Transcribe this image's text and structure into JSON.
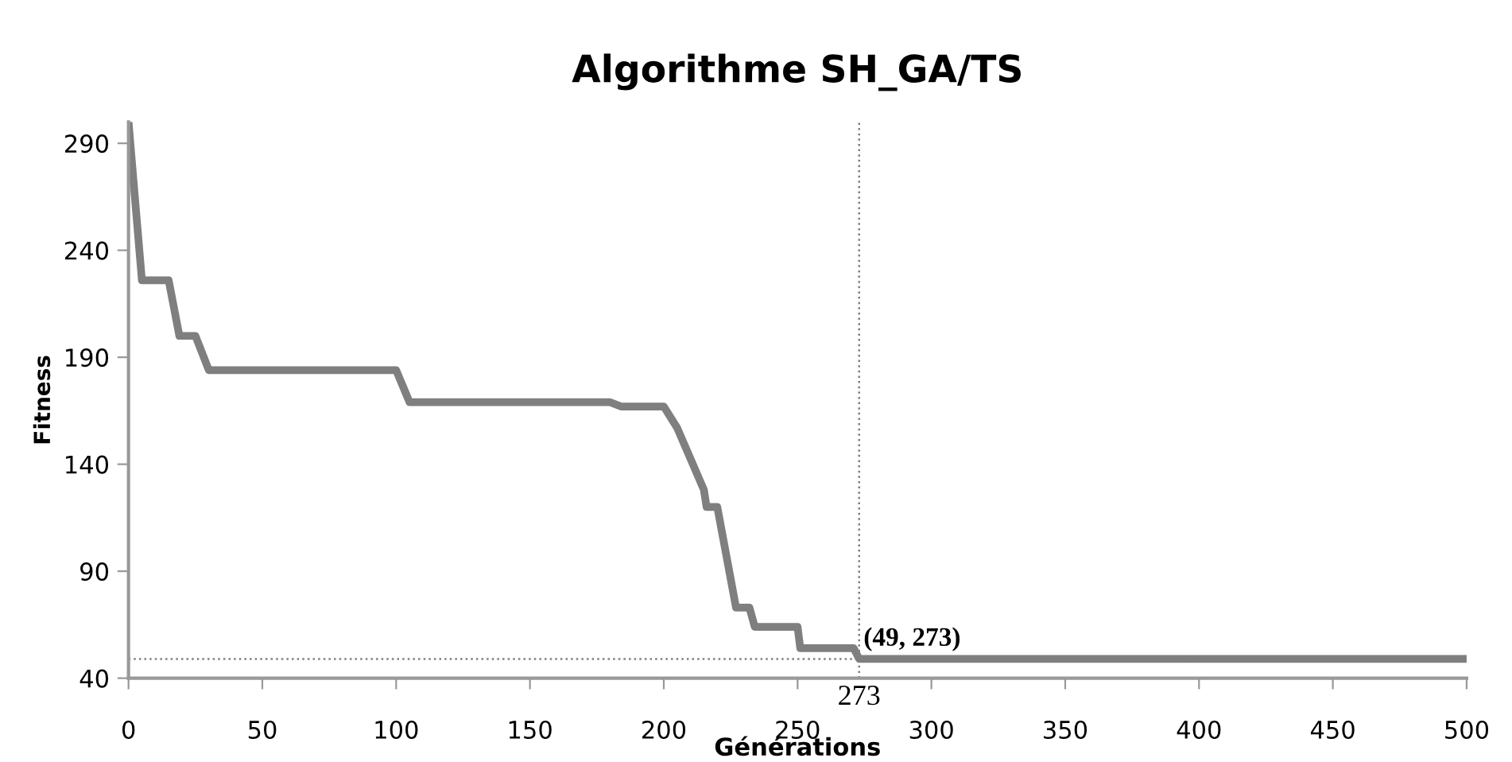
{
  "chart_data": {
    "type": "line",
    "title": "Algorithme SH_GA/TS",
    "xlabel": "Générations",
    "ylabel": "Fitness",
    "x": [
      0,
      5,
      15,
      19,
      25,
      30,
      100,
      105,
      180,
      184,
      200,
      205,
      215,
      216,
      220,
      227,
      232,
      234,
      250,
      251,
      271,
      273,
      500
    ],
    "series": [
      {
        "color": "#7f7f7f",
        "values": [
          300,
          226,
          226,
          200,
          200,
          184,
          184,
          169,
          169,
          167,
          167,
          157,
          128,
          120,
          120,
          73,
          73,
          64,
          64,
          54,
          54,
          49,
          49
        ]
      }
    ],
    "xlim": [
      0,
      500
    ],
    "ylim": [
      40,
      300
    ],
    "xticks": [
      0,
      50,
      100,
      150,
      200,
      250,
      300,
      350,
      400,
      450,
      500
    ],
    "yticks": [
      40,
      90,
      140,
      190,
      240,
      290
    ],
    "ref_lines": [
      {
        "axis": "y",
        "value": 49,
        "color": "#7f7f7f",
        "line_style": "dotted"
      },
      {
        "axis": "x",
        "value": 273,
        "label": "273",
        "color": "#7f7f7f",
        "line_style": "dotted"
      }
    ],
    "annotations": [
      {
        "text": "(49, 273)",
        "x": 273,
        "y": 49
      }
    ],
    "grid": false,
    "legend": false,
    "marker": "none",
    "line_style": "solid"
  }
}
